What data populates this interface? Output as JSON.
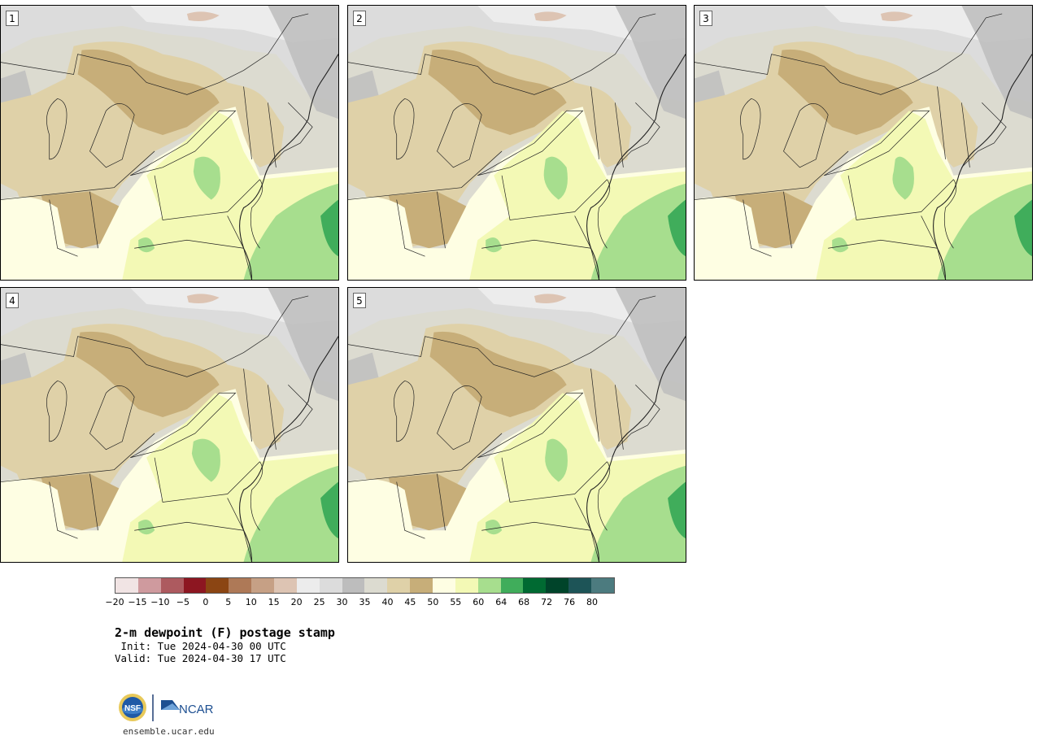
{
  "panels": [
    {
      "label": "1"
    },
    {
      "label": "2"
    },
    {
      "label": "3"
    },
    {
      "label": "4"
    },
    {
      "label": "5"
    }
  ],
  "colorbar": {
    "ticks": [
      "−20",
      "−15",
      "−10",
      "−5",
      "0",
      "5",
      "10",
      "15",
      "20",
      "25",
      "30",
      "35",
      "40",
      "45",
      "50",
      "55",
      "60",
      "64",
      "68",
      "72",
      "76",
      "80"
    ],
    "colors": [
      "#f1e4e4",
      "#cf9a9e",
      "#ad5a5f",
      "#8d1621",
      "#8b4513",
      "#ae7957",
      "#c6a085",
      "#ddc4b3",
      "#ececec",
      "#dcdcdc",
      "#bdbdbd",
      "#dcdbd0",
      "#dfd1a8",
      "#c7ae79",
      "#fefee3",
      "#f3f9b5",
      "#a7de8e",
      "#40ad5b",
      "#006a32",
      "#00442a",
      "#1d5457",
      "#4c7b7f"
    ]
  },
  "map_colors": {
    "grey_dark": "#bdbdbd",
    "grey_mid": "#dcdcdc",
    "grey_light": "#ececec",
    "pink": "#ddc4b3",
    "sage": "#dcdbd0",
    "tan_light": "#dfd1a8",
    "tan": "#c7ae79",
    "cream": "#fefee3",
    "yellow": "#f3f9b5",
    "green_light": "#a7de8e",
    "green": "#40ad5b"
  },
  "title": "2-m dewpoint (F) postage stamp",
  "init": " Init: Tue 2024-04-30 00 UTC",
  "valid": "Valid: Tue 2024-04-30 17 UTC",
  "footer": {
    "nsf_logo_text": "NSF",
    "ncar_logo_text": "NCAR",
    "url": "ensemble.ucar.edu"
  }
}
